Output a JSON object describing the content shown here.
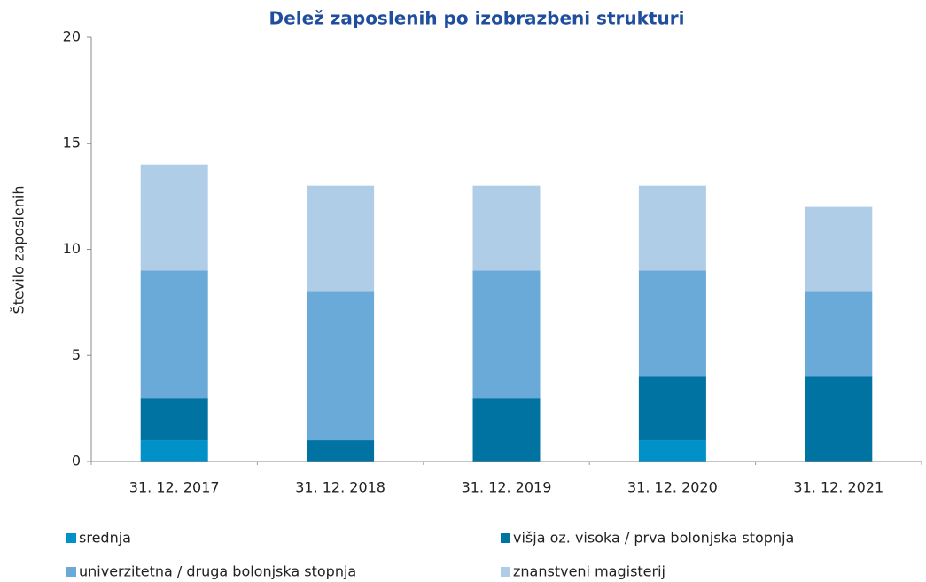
{
  "chart_data": {
    "type": "bar",
    "stacked": true,
    "title": "Delež zaposlenih po izobrazbeni strukturi",
    "y_label": "Število zaposlenih",
    "categories": [
      "31. 12. 2017",
      "31. 12. 2018",
      "31. 12. 2019",
      "31. 12. 2020",
      "31. 12. 2021"
    ],
    "series": [
      {
        "name": "srednja",
        "color": "#0091c8",
        "values": [
          1,
          0,
          0,
          1,
          0
        ]
      },
      {
        "name": "višja oz. visoka / prva bolonjska stopnja",
        "color": "#0073a3",
        "values": [
          2,
          1,
          3,
          3,
          4
        ]
      },
      {
        "name": "univerzitetna / druga bolonjska stopnja",
        "color": "#6aaad8",
        "values": [
          6,
          7,
          6,
          5,
          4
        ]
      },
      {
        "name": "znanstveni magisterij",
        "color": "#b0cde8",
        "values": [
          5,
          5,
          4,
          4,
          4
        ]
      }
    ],
    "ylim": [
      0,
      20
    ],
    "yticks": [
      0,
      5,
      10,
      15,
      20
    ],
    "grid": false
  }
}
